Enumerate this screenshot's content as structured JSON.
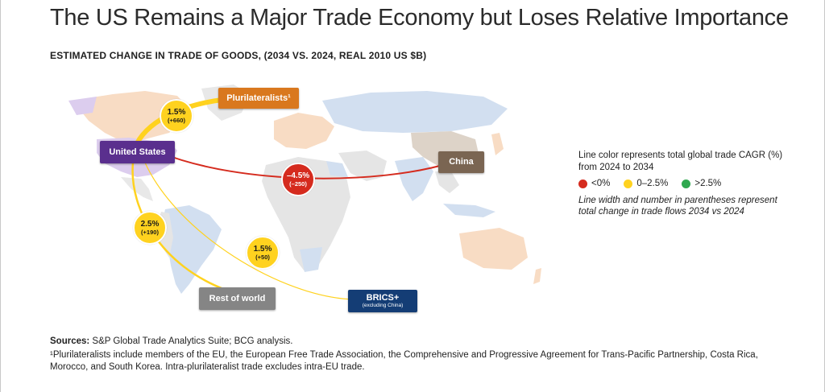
{
  "header": {
    "title": "The US Remains a Major Trade Economy but Loses Relative Importance",
    "subtitle": "ESTIMATED CHANGE IN TRADE OF GOODS, (2034 VS. 2024, REAL 2010 US $B)"
  },
  "nodes": {
    "us": "United States",
    "plurilateralists": "Plurilateralists¹",
    "china": "China",
    "rest_of_world": "Rest of world",
    "brics": "BRICS+",
    "brics_sub": "(excluding China)"
  },
  "flows": [
    {
      "from": "United States",
      "to": "Plurilateralists",
      "cagr": "1.5%",
      "change": "(+660)",
      "color": "#ffd21f"
    },
    {
      "from": "United States",
      "to": "China",
      "cagr": "–4.5%",
      "change": "(–250)",
      "color": "#d52b1e"
    },
    {
      "from": "United States",
      "to": "Rest of world",
      "cagr": "2.5%",
      "change": "(+190)",
      "color": "#ffd21f"
    },
    {
      "from": "United States",
      "to": "BRICS+",
      "cagr": "1.5%",
      "change": "(+50)",
      "color": "#ffd21f"
    }
  ],
  "legend": {
    "heading": "Line color represents total global trade CAGR (%) from 2024 to 2034",
    "items": [
      {
        "label": "<0%",
        "color": "#d52b1e"
      },
      {
        "label": "0–2.5%",
        "color": "#ffd21f"
      },
      {
        "label": ">2.5%",
        "color": "#2fa84f"
      }
    ],
    "note": "Line width and number in parentheses represent total change in trade flows 2034 vs 2024"
  },
  "sources": {
    "label": "Sources:",
    "text": " S&P Global Trade Analytics Suite; BCG analysis."
  },
  "footnote": "¹Plurilateralists include members of the EU, the European Free Trade Association, the Comprehensive and Progressive Agreement for Trans-Pacific Partnership, Costa Rica, Morocco, and South Korea. Intra-plurilateralist trade excludes intra-EU trade."
}
